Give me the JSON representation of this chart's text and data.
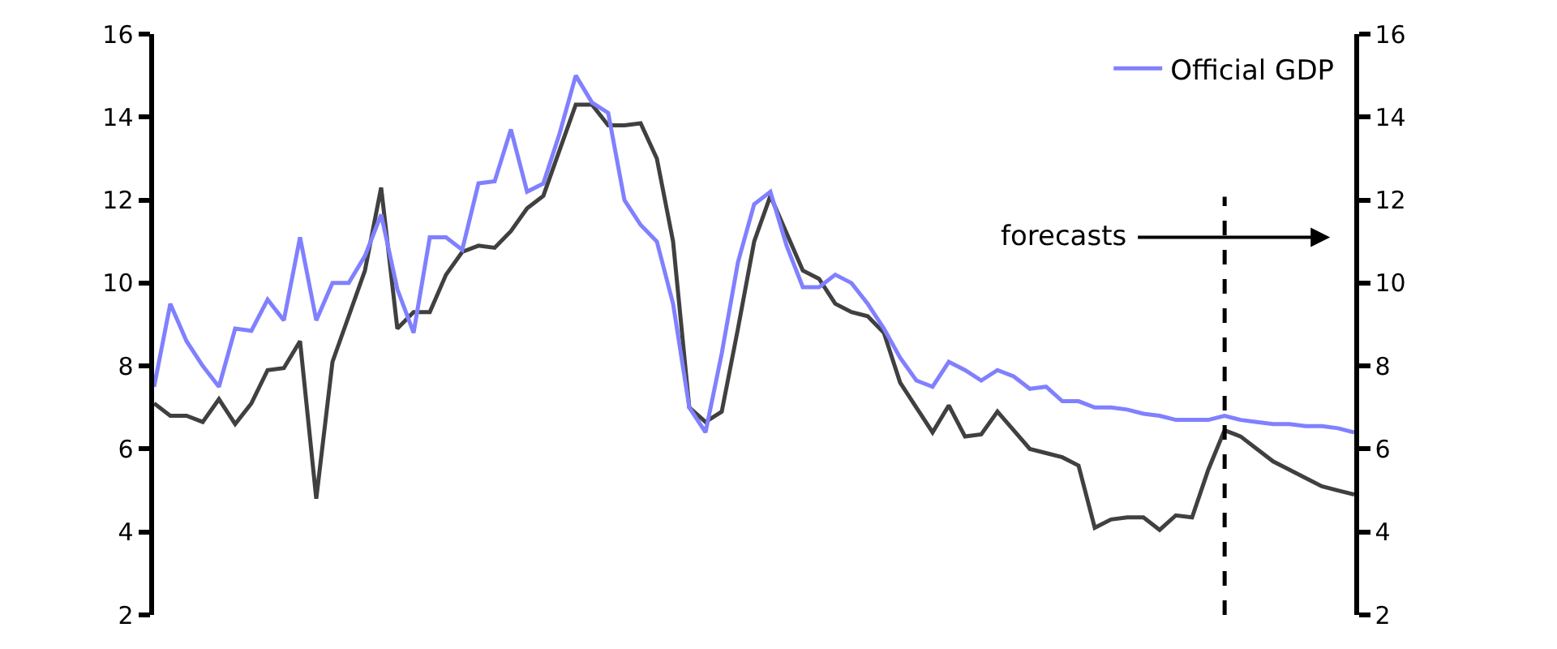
{
  "chart_data": {
    "type": "line",
    "categories": [
      null,
      null,
      null,
      null,
      null,
      null,
      null,
      null,
      null,
      null,
      null,
      null,
      null,
      null,
      null,
      null,
      null,
      null,
      null,
      null,
      null,
      null,
      null,
      null,
      null,
      null,
      null,
      null,
      null,
      null,
      null,
      null,
      null,
      null,
      null,
      null,
      null,
      null,
      null,
      null,
      null,
      null,
      null,
      null,
      null,
      null,
      null,
      null,
      null,
      null,
      null,
      null,
      null,
      null,
      null,
      null,
      null,
      null,
      null,
      null,
      null,
      null,
      null,
      null,
      null,
      null,
      null,
      null,
      null,
      null,
      null,
      null,
      null,
      null,
      null
    ],
    "series": [
      {
        "color": "#404040",
        "values": [
          7.1,
          6.8,
          6.8,
          6.65,
          7.2,
          6.6,
          7.1,
          7.9,
          7.95,
          8.6,
          4.8,
          8.1,
          9.2,
          10.3,
          12.3,
          8.9,
          9.3,
          9.3,
          10.2,
          10.75,
          10.9,
          10.85,
          11.25,
          11.8,
          12.1,
          13.2,
          14.3,
          14.3,
          13.8,
          13.8,
          13.85,
          13.0,
          11.0,
          7.0,
          6.65,
          6.9,
          8.9,
          11.0,
          12.1,
          11.2,
          10.3,
          10.1,
          9.5,
          9.3,
          9.2,
          8.8,
          7.6,
          7.0,
          6.4,
          7.05,
          6.3,
          6.35,
          6.9,
          6.45,
          6.0,
          5.9,
          5.8,
          5.6,
          4.1,
          4.3,
          4.35,
          4.35,
          4.05,
          4.4,
          4.35,
          5.5,
          6.45,
          6.3,
          6.0,
          5.7,
          5.5,
          5.3,
          5.1,
          5.0,
          4.9
        ]
      },
      {
        "name": "Official GDP",
        "color": "#8080ff",
        "values": [
          7.5,
          9.5,
          8.6,
          8.0,
          7.5,
          8.9,
          8.85,
          9.6,
          9.1,
          11.1,
          9.1,
          10.0,
          10.0,
          10.65,
          11.65,
          9.85,
          8.8,
          11.1,
          11.1,
          10.8,
          12.4,
          12.45,
          13.7,
          12.2,
          12.4,
          13.6,
          15.0,
          14.35,
          14.1,
          12.0,
          11.4,
          11.0,
          9.5,
          7.0,
          6.4,
          8.3,
          10.5,
          11.9,
          12.2,
          10.9,
          9.9,
          9.9,
          10.2,
          10.0,
          9.5,
          8.9,
          8.2,
          7.65,
          7.5,
          8.1,
          7.9,
          7.65,
          7.9,
          7.75,
          7.45,
          7.5,
          7.15,
          7.15,
          7.0,
          7.0,
          6.95,
          6.85,
          6.8,
          6.7,
          6.7,
          6.7,
          6.8,
          6.7,
          6.65,
          6.6,
          6.6,
          6.55,
          6.55,
          6.5,
          6.4
        ]
      }
    ],
    "ylim": [
      2,
      16
    ],
    "yticks": [
      2,
      4,
      6,
      8,
      10,
      12,
      14,
      16
    ],
    "y2lim": [
      2,
      16
    ],
    "y2ticks": [
      2,
      4,
      6,
      8,
      10,
      12,
      14,
      16
    ],
    "annotations": [
      "forecasts"
    ],
    "legend": "top right",
    "tick_labels": "y",
    "marker": "none",
    "line_style": "solid"
  }
}
